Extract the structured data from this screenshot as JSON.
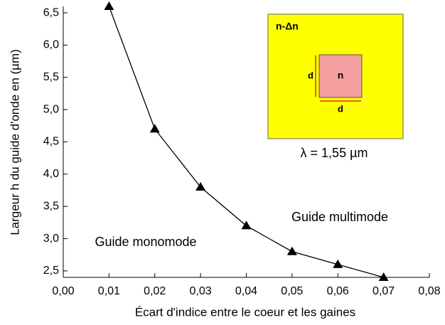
{
  "chart_data": {
    "type": "line",
    "x_label": "Écart d'indice entre le coeur et les gaines",
    "y_label": "Largeur h du guide d'onde en (µm)",
    "x": [
      0.01,
      0.02,
      0.03,
      0.04,
      0.05,
      0.06,
      0.07
    ],
    "series": [
      {
        "name": null,
        "color": "#000000",
        "values": [
          6.6,
          4.7,
          3.8,
          3.2,
          2.8,
          2.6,
          2.4
        ]
      }
    ],
    "xlim": [
      0,
      0.08
    ],
    "xticks": [
      {
        "value": 0,
        "label": "0,00"
      },
      {
        "value": 0.01,
        "label": "0,01"
      },
      {
        "value": 0.02,
        "label": "0,02"
      },
      {
        "value": 0.03,
        "label": "0,03"
      },
      {
        "value": 0.04,
        "label": "0,04"
      },
      {
        "value": 0.05,
        "label": "0,05"
      },
      {
        "value": 0.06,
        "label": "0,06"
      },
      {
        "value": 0.07,
        "label": "0,07"
      },
      {
        "value": 0.08,
        "label": "0,08"
      }
    ],
    "ylim": [
      2.4,
      6.6
    ],
    "yticks": [
      {
        "value": 2.5,
        "label": "2,5"
      },
      {
        "value": 3,
        "label": "3,0"
      },
      {
        "value": 3.5,
        "label": "3,5"
      },
      {
        "value": 4,
        "label": "4,0"
      },
      {
        "value": 4.5,
        "label": "4,5"
      },
      {
        "value": 5,
        "label": "5,0"
      },
      {
        "value": 5.5,
        "label": "5,5"
      },
      {
        "value": 6,
        "label": "6,0"
      },
      {
        "value": 6.5,
        "label": "6,5"
      }
    ],
    "annotations": [
      "Guide multimode",
      "Guide monomode"
    ],
    "inset": {
      "outer_label": "n-Δn",
      "core_label": "n",
      "dimension_label": "d",
      "wavelength": "λ = 1,55 µm"
    }
  }
}
